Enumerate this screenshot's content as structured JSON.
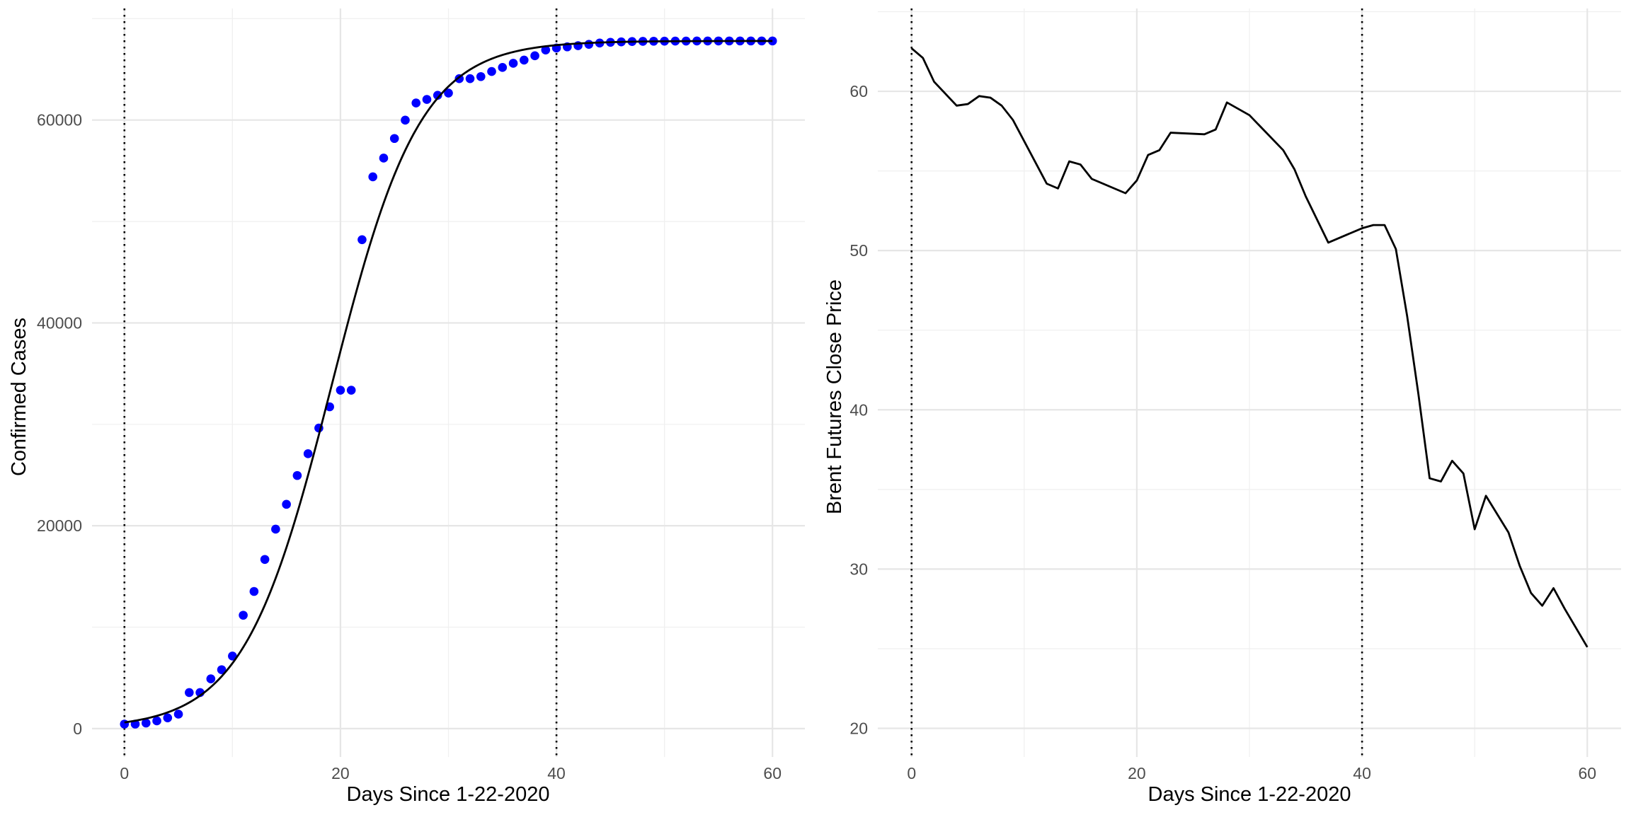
{
  "chart_data": [
    {
      "type": "scatter",
      "xlabel": "Days Since 1-22-2020",
      "ylabel": "Confirmed Cases",
      "xlim": [
        -3,
        63
      ],
      "ylim": [
        -2800,
        71000
      ],
      "x_ticks": [
        0,
        20,
        40,
        60
      ],
      "y_ticks": [
        0,
        20000,
        40000,
        60000
      ],
      "grid": true,
      "reference_lines_x": [
        0,
        40
      ],
      "series": [
        {
          "kind": "points",
          "color": "#0000ff",
          "x": [
            0,
            1,
            2,
            3,
            4,
            5,
            6,
            7,
            8,
            9,
            10,
            11,
            12,
            13,
            14,
            15,
            16,
            17,
            18,
            19,
            20,
            21,
            22,
            23,
            24,
            25,
            26,
            27,
            28,
            29,
            30,
            31,
            32,
            33,
            34,
            35,
            36,
            37,
            38,
            39,
            40,
            41,
            42,
            43,
            44,
            45,
            46,
            47,
            48,
            49,
            50,
            51,
            52,
            53,
            54,
            55,
            56,
            57,
            58,
            59,
            60
          ],
          "y": [
            444,
            444,
            549,
            761,
            1058,
            1423,
            3554,
            3554,
            4903,
            5806,
            7153,
            11177,
            13522,
            16678,
            19665,
            22112,
            24953,
            27100,
            29631,
            31728,
            33366,
            33366,
            48206,
            54406,
            56249,
            58182,
            59989,
            61682,
            62031,
            62442,
            62662,
            64084,
            64084,
            64287,
            64786,
            65187,
            65596,
            65914,
            66337,
            66907,
            67103,
            67217,
            67332,
            67466,
            67592,
            67666,
            67707,
            67743,
            67760,
            67773,
            67781,
            67786,
            67790,
            67794,
            67798,
            67799,
            67800,
            67800,
            67800,
            67800,
            67800
          ]
        },
        {
          "kind": "fitted-curve",
          "color": "#000000",
          "model": "logistic",
          "K": 67800,
          "r": 0.245,
          "t0": 19.2
        }
      ]
    },
    {
      "type": "line",
      "xlabel": "Days Since 1-22-2020",
      "ylabel": "Brent Futures Close Price",
      "xlim": [
        -3,
        63
      ],
      "ylim": [
        18.2,
        65.2
      ],
      "x_ticks": [
        0,
        20,
        40,
        60
      ],
      "y_ticks": [
        20,
        30,
        40,
        50,
        60
      ],
      "grid": true,
      "reference_lines_x": [
        0,
        40
      ],
      "series": [
        {
          "color": "#000000",
          "x": [
            0,
            1,
            2,
            4,
            5,
            6,
            7,
            8,
            9,
            12,
            13,
            14,
            15,
            16,
            19,
            20,
            21,
            22,
            23,
            26,
            27,
            28,
            30,
            33,
            34,
            35,
            37,
            40,
            41,
            42,
            43,
            44,
            45,
            46,
            47,
            48,
            49,
            50,
            51,
            53,
            54,
            55,
            56,
            57,
            58,
            60
          ],
          "y": [
            62.7,
            62.1,
            60.6,
            59.1,
            59.2,
            59.7,
            59.6,
            59.1,
            58.2,
            54.2,
            53.9,
            55.6,
            55.4,
            54.5,
            53.6,
            54.4,
            56.0,
            56.3,
            57.4,
            57.3,
            57.6,
            59.3,
            58.5,
            56.3,
            55.1,
            53.4,
            50.5,
            51.4,
            51.6,
            51.6,
            50.1,
            45.9,
            41.0,
            35.7,
            35.5,
            36.8,
            36.0,
            32.5,
            34.6,
            32.3,
            30.2,
            28.5,
            27.7,
            28.8,
            27.5,
            25.1
          ]
        }
      ]
    }
  ]
}
